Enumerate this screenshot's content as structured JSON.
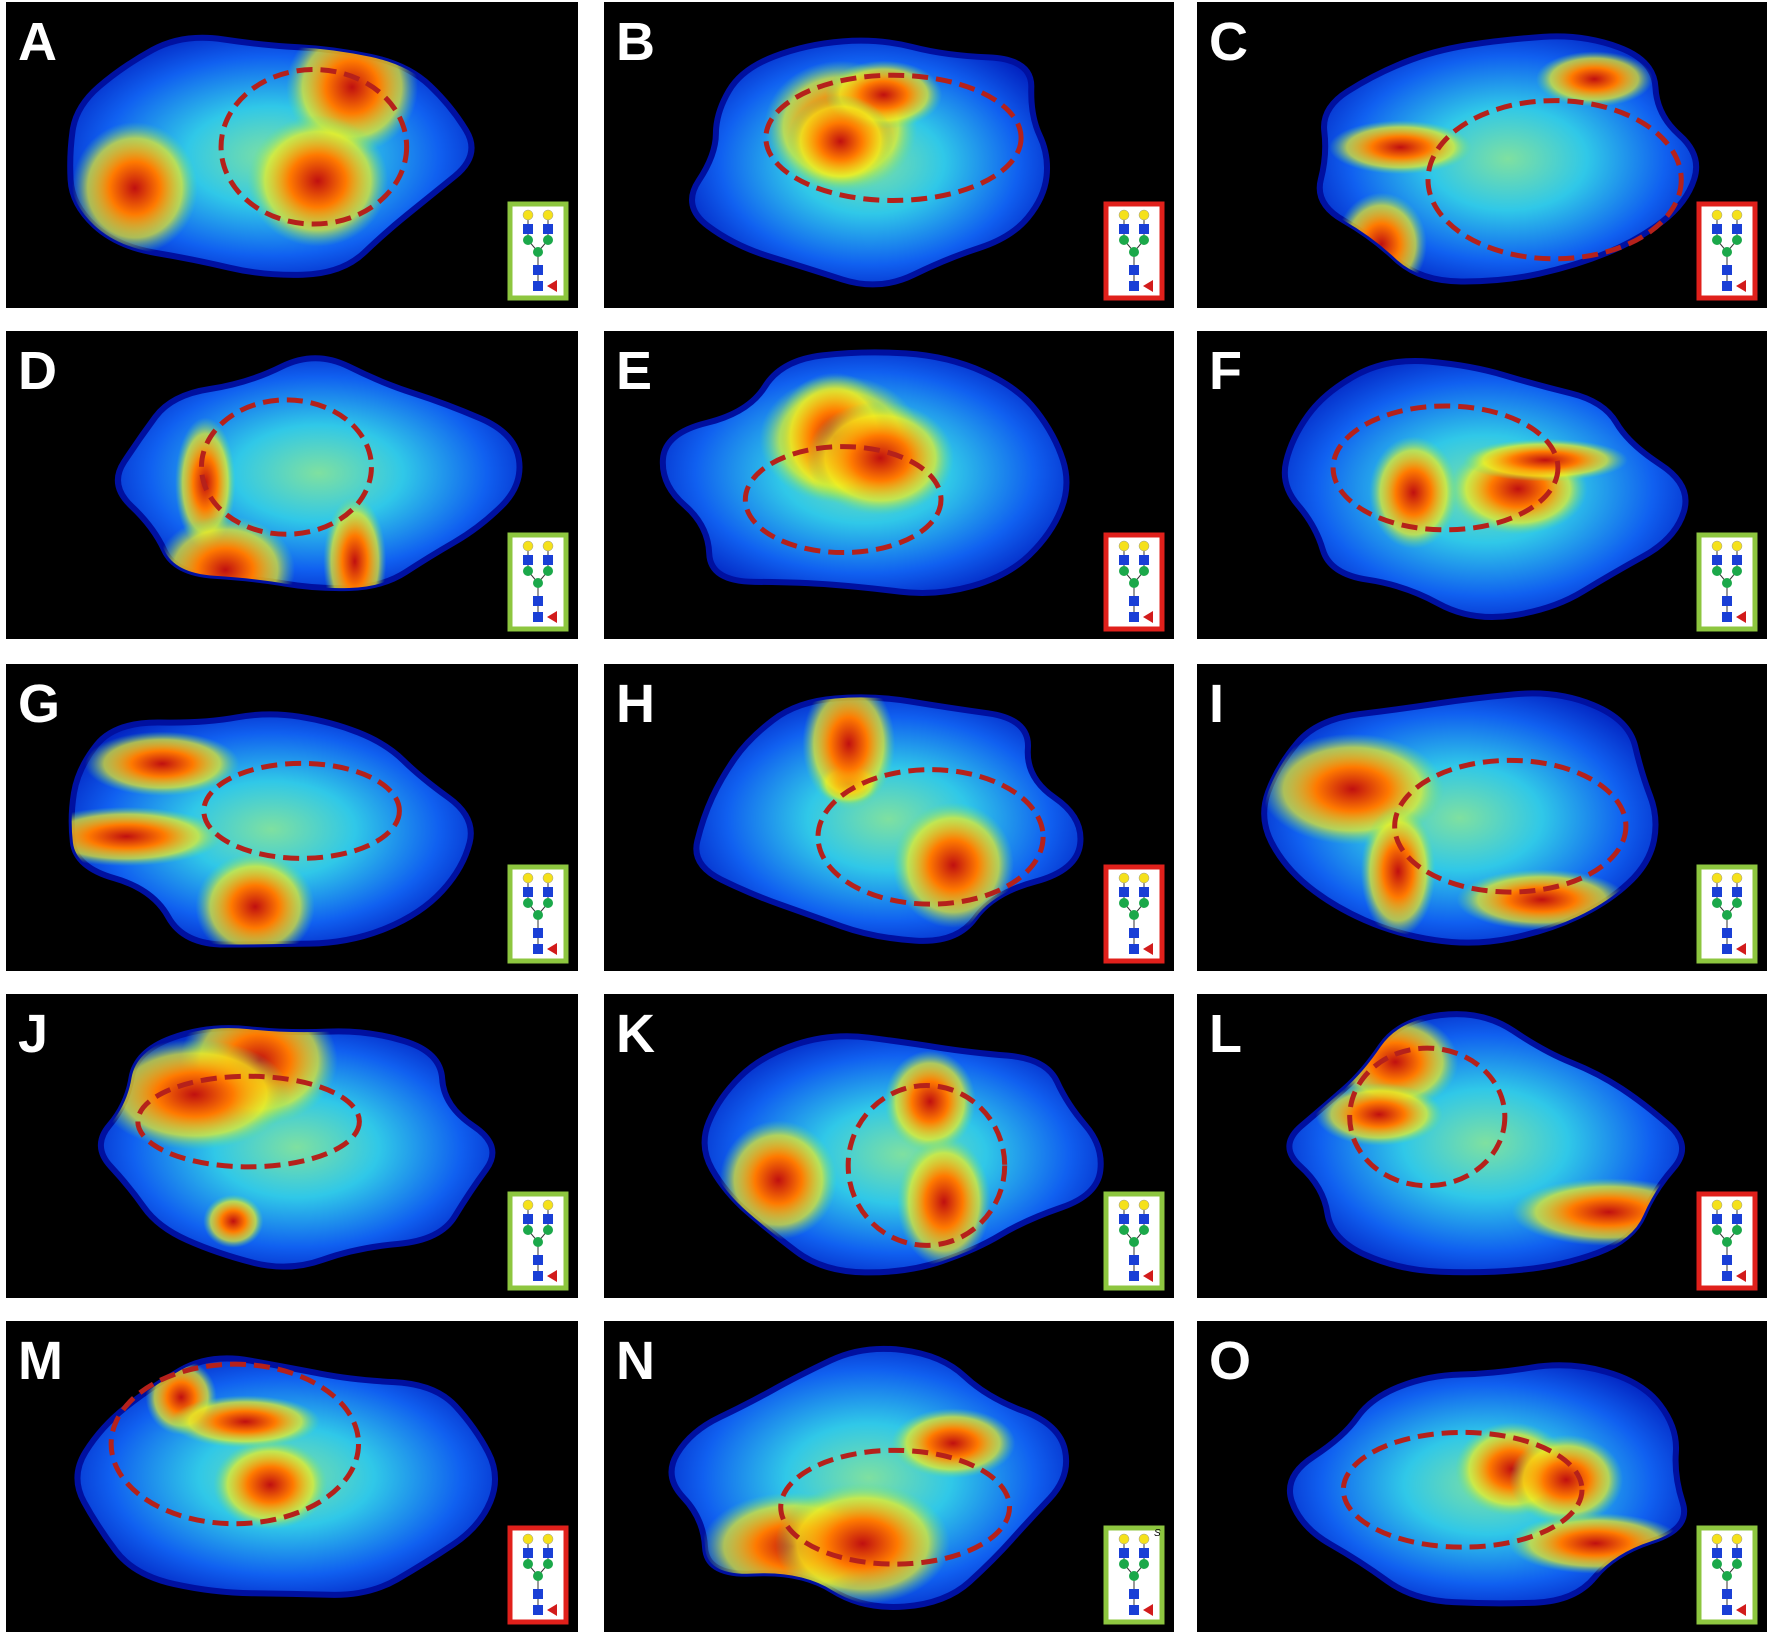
{
  "panels": [
    {
      "label": "A",
      "frame": "#8dc63f"
    },
    {
      "label": "B",
      "frame": "#e0201b"
    },
    {
      "label": "C",
      "frame": "#e0201b"
    },
    {
      "label": "D",
      "frame": "#8dc63f"
    },
    {
      "label": "E",
      "frame": "#e0201b"
    },
    {
      "label": "F",
      "frame": "#8dc63f"
    },
    {
      "label": "G",
      "frame": "#8dc63f"
    },
    {
      "label": "H",
      "frame": "#e0201b"
    },
    {
      "label": "I",
      "frame": "#8dc63f"
    },
    {
      "label": "J",
      "frame": "#8dc63f"
    },
    {
      "label": "K",
      "frame": "#8dc63f"
    },
    {
      "label": "L",
      "frame": "#e0201b"
    },
    {
      "label": "M",
      "frame": "#e0201b"
    },
    {
      "label": "N",
      "frame": "#8dc63f",
      "glycan_text": "S"
    },
    {
      "label": "O",
      "frame": "#8dc63f"
    }
  ]
}
